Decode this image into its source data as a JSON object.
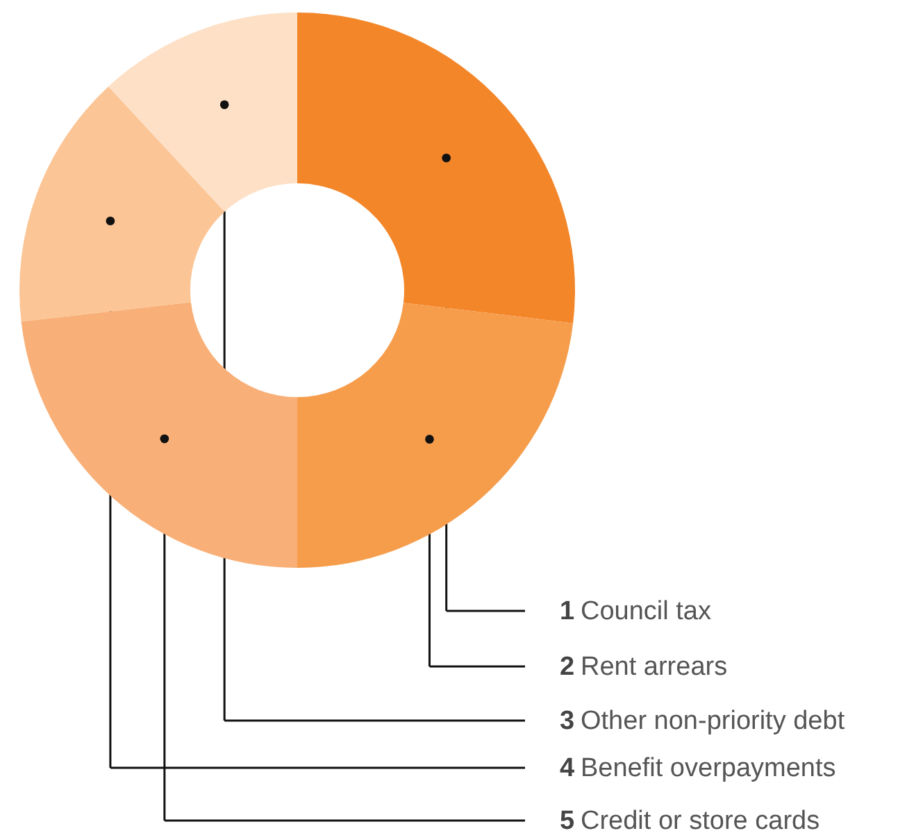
{
  "chart_data": {
    "type": "donut",
    "categories": [
      "1 Council tax",
      "2 Rent arrears",
      "3 Other non-priority debt",
      "4 Benefit overpayments",
      "5 Credit or store cards"
    ],
    "values": [
      26.9,
      23.1,
      11.9,
      14.9,
      23.2
    ],
    "colors": [
      "#f4862a",
      "#f69d4c",
      "#fde0c6",
      "#fbc596",
      "#f8b078"
    ]
  }
}
